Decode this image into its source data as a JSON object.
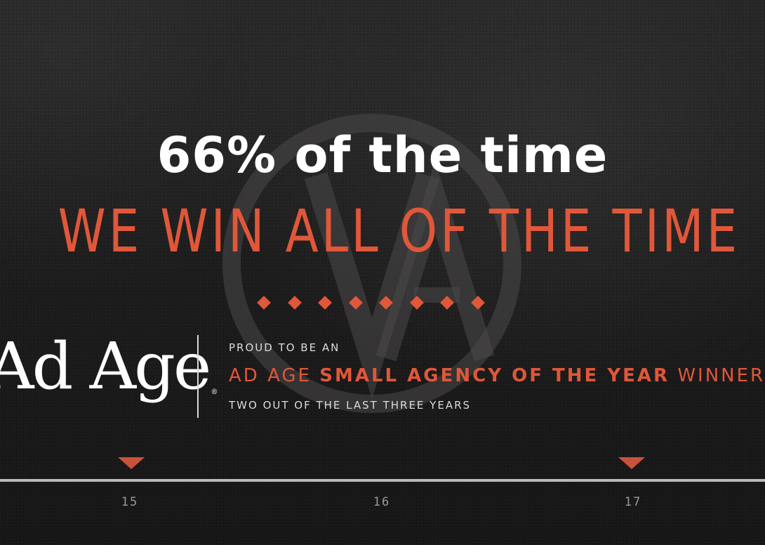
{
  "headline": "66% of the time",
  "banner": "WE WIN ALL OF THE TIME",
  "diamond_count": 8,
  "logo": {
    "text": "Ad Age",
    "registered_mark": "®"
  },
  "award": {
    "line1": "PROUD TO BE AN",
    "line2_prefix": "AD AGE ",
    "line2_bold": "SMALL AGENCY OF THE YEAR",
    "line2_suffix": " WINNER",
    "line3": "TWO OUT OF THE LAST THREE YEARS"
  },
  "watermark_logo": "VA",
  "timeline": {
    "years": [
      {
        "label": "15",
        "won": true
      },
      {
        "label": "16",
        "won": false
      },
      {
        "label": "17",
        "won": true
      }
    ]
  },
  "colors": {
    "accent": "#e0573a",
    "background": "#1b1a1a",
    "text": "#ffffff",
    "timeline": "#b8b8b8"
  }
}
